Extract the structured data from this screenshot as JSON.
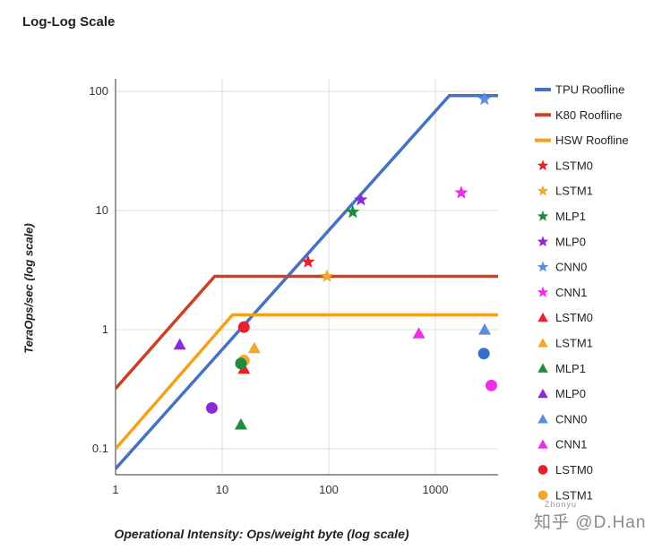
{
  "chart_data": {
    "type": "scatter",
    "title": "Log-Log Scale",
    "xlabel": "Operational Intensity: Ops/weight byte (log scale)",
    "ylabel": "TeraOps/sec (log scale)",
    "xscale": "log",
    "yscale": "log",
    "xlim": [
      1,
      4000
    ],
    "ylim": [
      0.07,
      100
    ],
    "x_ticks": [
      1,
      10,
      100,
      1000
    ],
    "x_tick_labels": [
      "1",
      "10",
      "100",
      "1000"
    ],
    "y_ticks": [
      0.1,
      1,
      10,
      100
    ],
    "y_tick_labels": [
      "0.1",
      "1",
      "10",
      "100"
    ],
    "grid": "vertical and horizontal major gridlines",
    "legend_position": "right",
    "rooflines": [
      {
        "name": "TPU Roofline",
        "color": "#4472c4",
        "x": [
          1,
          1350,
          4000
        ],
        "y": [
          0.068,
          92,
          92
        ]
      },
      {
        "name": "K80 Roofline",
        "color": "#cc4125",
        "x": [
          1,
          8.5,
          4000
        ],
        "y": [
          0.32,
          2.8,
          2.8
        ]
      },
      {
        "name": "HSW Roofline",
        "color": "#f6a01a",
        "x": [
          1,
          12.5,
          4000
        ],
        "y": [
          0.1,
          1.33,
          1.33
        ]
      }
    ],
    "series": [
      {
        "name": "LSTM0",
        "marker": "star",
        "color": "#e8222b",
        "x": 64,
        "y": 3.7
      },
      {
        "name": "LSTM1",
        "marker": "star",
        "color": "#f2a72e",
        "x": 96,
        "y": 2.8
      },
      {
        "name": "MLP1",
        "marker": "star",
        "color": "#1e8c3a",
        "x": 168,
        "y": 9.7
      },
      {
        "name": "MLP0",
        "marker": "star",
        "color": "#8b2ad6",
        "x": 200,
        "y": 12.3
      },
      {
        "name": "CNN0",
        "marker": "star",
        "color": "#5b8ee0",
        "x": 2888,
        "y": 86
      },
      {
        "name": "CNN1",
        "marker": "star",
        "color": "#ee2fe6",
        "x": 1750,
        "y": 14.1
      },
      {
        "name": "LSTM0",
        "marker": "triangle",
        "color": "#e8222b",
        "x": 16,
        "y": 0.47
      },
      {
        "name": "LSTM1",
        "marker": "triangle",
        "color": "#f2a72e",
        "x": 20,
        "y": 0.7
      },
      {
        "name": "MLP1",
        "marker": "triangle",
        "color": "#1e8c3a",
        "x": 15,
        "y": 0.16
      },
      {
        "name": "MLP0",
        "marker": "triangle",
        "color": "#8b2ad6",
        "x": 4,
        "y": 0.75
      },
      {
        "name": "CNN0",
        "marker": "triangle",
        "color": "#5b8ee0",
        "x": 2900,
        "y": 1.0
      },
      {
        "name": "CNN1",
        "marker": "triangle",
        "color": "#ee2fe6",
        "x": 700,
        "y": 0.93
      },
      {
        "name": "LSTM0",
        "marker": "circle",
        "color": "#e8222b",
        "x": 16,
        "y": 1.05
      },
      {
        "name": "LSTM1",
        "marker": "circle",
        "color": "#f2a72e",
        "x": 16,
        "y": 0.55
      },
      {
        "name": "MLP1",
        "marker": "circle",
        "color": "#1e8c3a",
        "x": 15,
        "y": 0.52
      },
      {
        "name": "MLP0",
        "marker": "circle",
        "color": "#8b2ad6",
        "x": 8,
        "y": 0.22
      },
      {
        "name": "CNN0",
        "marker": "circle",
        "color": "#3a6fc7",
        "x": 2850,
        "y": 0.63
      },
      {
        "name": "CNN1",
        "marker": "circle",
        "color": "#ee2fe6",
        "x": 3350,
        "y": 0.34
      }
    ],
    "legend": [
      {
        "label": "TPU Roofline",
        "marker": "line",
        "color": "#4472c4"
      },
      {
        "label": "K80 Roofline",
        "marker": "line",
        "color": "#cc4125"
      },
      {
        "label": "HSW Roofline",
        "marker": "line",
        "color": "#f6a01a"
      },
      {
        "label": "LSTM0",
        "marker": "star",
        "color": "#e8222b"
      },
      {
        "label": "LSTM1",
        "marker": "star",
        "color": "#f2a72e"
      },
      {
        "label": "MLP1",
        "marker": "star",
        "color": "#1e8c3a"
      },
      {
        "label": "MLP0",
        "marker": "star",
        "color": "#8b2ad6"
      },
      {
        "label": "CNN0",
        "marker": "star",
        "color": "#5b8ee0"
      },
      {
        "label": "CNN1",
        "marker": "star",
        "color": "#ee2fe6"
      },
      {
        "label": "LSTM0",
        "marker": "triangle",
        "color": "#e8222b"
      },
      {
        "label": "LSTM1",
        "marker": "triangle",
        "color": "#f2a72e"
      },
      {
        "label": "MLP1",
        "marker": "triangle",
        "color": "#1e8c3a"
      },
      {
        "label": "MLP0",
        "marker": "triangle",
        "color": "#8b2ad6"
      },
      {
        "label": "CNN0",
        "marker": "triangle",
        "color": "#5b8ee0"
      },
      {
        "label": "CNN1",
        "marker": "triangle",
        "color": "#ee2fe6"
      },
      {
        "label": "LSTM0",
        "marker": "circle",
        "color": "#e8222b"
      },
      {
        "label": "LSTM1",
        "marker": "circle",
        "color": "#f2a72e"
      }
    ]
  },
  "watermark": {
    "text": "知乎 @D.Han",
    "small_text": "Zhonyu"
  }
}
